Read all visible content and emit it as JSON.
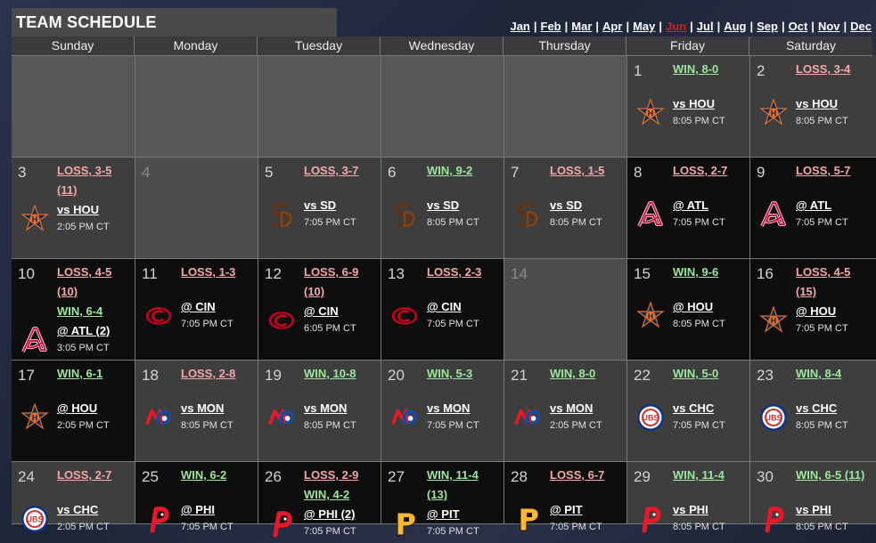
{
  "header": {
    "title": "TEAM SCHEDULE"
  },
  "months": [
    {
      "label": "Jan",
      "active": false
    },
    {
      "label": "Feb",
      "active": false
    },
    {
      "label": "Mar",
      "active": false
    },
    {
      "label": "Apr",
      "active": false
    },
    {
      "label": "May",
      "active": false
    },
    {
      "label": "Jun",
      "active": true
    },
    {
      "label": "Jul",
      "active": false
    },
    {
      "label": "Aug",
      "active": false
    },
    {
      "label": "Sep",
      "active": false
    },
    {
      "label": "Oct",
      "active": false
    },
    {
      "label": "Nov",
      "active": false
    },
    {
      "label": "Dec",
      "active": false
    }
  ],
  "month_separator": "|",
  "weekdays": [
    "Sunday",
    "Monday",
    "Tuesday",
    "Wednesday",
    "Thursday",
    "Friday",
    "Saturday"
  ],
  "colors": {
    "win": "#9ee59e",
    "loss": "#f2a8a8",
    "active_month": "#cc1f1f",
    "home_cell": "#3e3e3e",
    "away_cell": "#0e0e0e",
    "off_cell": "#4d4d4d",
    "empty_cell": "#575756"
  },
  "weeks": [
    [
      {
        "type": "empty"
      },
      {
        "type": "empty"
      },
      {
        "type": "empty"
      },
      {
        "type": "empty"
      },
      {
        "type": "empty"
      },
      {
        "type": "game",
        "day": "1",
        "home": true,
        "results": [
          {
            "text": "WIN, 8-0",
            "outcome": "win"
          }
        ],
        "opponent": "vs HOU",
        "time": "8:05 PM CT",
        "logo": "astros-logo"
      },
      {
        "type": "game",
        "day": "2",
        "home": true,
        "results": [
          {
            "text": "LOSS, 3-4",
            "outcome": "loss"
          }
        ],
        "opponent": "vs HOU",
        "time": "8:05 PM CT",
        "logo": "astros-logo"
      }
    ],
    [
      {
        "type": "game",
        "day": "3",
        "home": true,
        "results": [
          {
            "text": "LOSS, 3-5",
            "outcome": "loss"
          },
          {
            "text": "(11)",
            "outcome": "loss"
          }
        ],
        "opponent": "vs HOU",
        "time": "2:05 PM CT",
        "logo": "astros-logo"
      },
      {
        "type": "off",
        "day": "4"
      },
      {
        "type": "game",
        "day": "5",
        "home": true,
        "results": [
          {
            "text": "LOSS, 3-7",
            "outcome": "loss"
          }
        ],
        "opponent": "vs SD",
        "time": "7:05 PM CT",
        "logo": "padres-logo"
      },
      {
        "type": "game",
        "day": "6",
        "home": true,
        "results": [
          {
            "text": "WIN, 9-2",
            "outcome": "win"
          }
        ],
        "opponent": "vs SD",
        "time": "8:05 PM CT",
        "logo": "padres-logo"
      },
      {
        "type": "game",
        "day": "7",
        "home": true,
        "results": [
          {
            "text": "LOSS, 1-5",
            "outcome": "loss"
          }
        ],
        "opponent": "vs SD",
        "time": "8:05 PM CT",
        "logo": "padres-logo"
      },
      {
        "type": "game",
        "day": "8",
        "home": false,
        "results": [
          {
            "text": "LOSS, 2-7",
            "outcome": "loss"
          }
        ],
        "opponent": "@ ATL",
        "time": "7:05 PM CT",
        "logo": "braves-logo"
      },
      {
        "type": "game",
        "day": "9",
        "home": false,
        "results": [
          {
            "text": "LOSS, 5-7",
            "outcome": "loss"
          }
        ],
        "opponent": "@ ATL",
        "time": "7:05 PM CT",
        "logo": "braves-logo"
      }
    ],
    [
      {
        "type": "game",
        "day": "10",
        "home": false,
        "results": [
          {
            "text": "LOSS, 4-5",
            "outcome": "loss"
          },
          {
            "text": "(10)",
            "outcome": "loss"
          },
          {
            "text": "WIN, 6-4",
            "outcome": "win"
          }
        ],
        "opponent": "@ ATL (2)",
        "time": "3:05 PM CT",
        "logo": "braves-logo"
      },
      {
        "type": "game",
        "day": "11",
        "home": false,
        "results": [
          {
            "text": "LOSS, 1-3",
            "outcome": "loss"
          }
        ],
        "opponent": "@ CIN",
        "time": "7:05 PM CT",
        "logo": "reds-logo"
      },
      {
        "type": "game",
        "day": "12",
        "home": false,
        "results": [
          {
            "text": "LOSS, 6-9",
            "outcome": "loss"
          },
          {
            "text": "(10)",
            "outcome": "loss"
          }
        ],
        "opponent": "@ CIN",
        "time": "6:05 PM CT",
        "logo": "reds-logo"
      },
      {
        "type": "game",
        "day": "13",
        "home": false,
        "results": [
          {
            "text": "LOSS, 2-3",
            "outcome": "loss"
          }
        ],
        "opponent": "@ CIN",
        "time": "7:05 PM CT",
        "logo": "reds-logo"
      },
      {
        "type": "off",
        "day": "14"
      },
      {
        "type": "game",
        "day": "15",
        "home": false,
        "results": [
          {
            "text": "WIN, 9-6",
            "outcome": "win"
          }
        ],
        "opponent": "@ HOU",
        "time": "8:05 PM CT",
        "logo": "astros-logo"
      },
      {
        "type": "game",
        "day": "16",
        "home": false,
        "results": [
          {
            "text": "LOSS, 4-5",
            "outcome": "loss"
          },
          {
            "text": "(15)",
            "outcome": "loss"
          }
        ],
        "opponent": "@ HOU",
        "time": "7:05 PM CT",
        "logo": "astros-logo"
      }
    ],
    [
      {
        "type": "game",
        "day": "17",
        "home": false,
        "results": [
          {
            "text": "WIN, 6-1",
            "outcome": "win"
          }
        ],
        "opponent": "@ HOU",
        "time": "2:05 PM CT",
        "logo": "astros-logo"
      },
      {
        "type": "game",
        "day": "18",
        "home": true,
        "results": [
          {
            "text": "LOSS, 2-8",
            "outcome": "loss"
          }
        ],
        "opponent": "vs MON",
        "time": "8:05 PM CT",
        "logo": "expos-logo"
      },
      {
        "type": "game",
        "day": "19",
        "home": true,
        "results": [
          {
            "text": "WIN, 10-8",
            "outcome": "win"
          }
        ],
        "opponent": "vs MON",
        "time": "8:05 PM CT",
        "logo": "expos-logo"
      },
      {
        "type": "game",
        "day": "20",
        "home": true,
        "results": [
          {
            "text": "WIN, 5-3",
            "outcome": "win"
          }
        ],
        "opponent": "vs MON",
        "time": "7:05 PM CT",
        "logo": "expos-logo"
      },
      {
        "type": "game",
        "day": "21",
        "home": true,
        "results": [
          {
            "text": "WIN, 8-0",
            "outcome": "win"
          }
        ],
        "opponent": "vs MON",
        "time": "2:05 PM CT",
        "logo": "expos-logo"
      },
      {
        "type": "game",
        "day": "22",
        "home": true,
        "results": [
          {
            "text": "WIN, 5-0",
            "outcome": "win"
          }
        ],
        "opponent": "vs CHC",
        "time": "7:05 PM CT",
        "logo": "cubs-logo"
      },
      {
        "type": "game",
        "day": "23",
        "home": true,
        "results": [
          {
            "text": "WIN, 8-4",
            "outcome": "win"
          }
        ],
        "opponent": "vs CHC",
        "time": "8:05 PM CT",
        "logo": "cubs-logo"
      }
    ],
    [
      {
        "type": "game",
        "day": "24",
        "home": true,
        "results": [
          {
            "text": "LOSS, 2-7",
            "outcome": "loss"
          }
        ],
        "opponent": "vs CHC",
        "time": "2:05 PM CT",
        "logo": "cubs-logo"
      },
      {
        "type": "game",
        "day": "25",
        "home": false,
        "results": [
          {
            "text": "WIN, 6-2",
            "outcome": "win"
          }
        ],
        "opponent": "@ PHI",
        "time": "7:05 PM CT",
        "logo": "phillies-logo"
      },
      {
        "type": "game",
        "day": "26",
        "home": false,
        "results": [
          {
            "text": "LOSS, 2-9",
            "outcome": "loss"
          },
          {
            "text": "WIN, 4-2",
            "outcome": "win"
          }
        ],
        "opponent": "@ PHI (2)",
        "time": "7:05 PM CT",
        "logo": "phillies-logo"
      },
      {
        "type": "game",
        "day": "27",
        "home": false,
        "results": [
          {
            "text": "WIN, 11-4",
            "outcome": "win"
          },
          {
            "text": "(13)",
            "outcome": "win"
          }
        ],
        "opponent": "@ PIT",
        "time": "7:05 PM CT",
        "logo": "pirates-logo"
      },
      {
        "type": "game",
        "day": "28",
        "home": false,
        "results": [
          {
            "text": "LOSS, 6-7",
            "outcome": "loss"
          }
        ],
        "opponent": "@ PIT",
        "time": "7:05 PM CT",
        "logo": "pirates-logo"
      },
      {
        "type": "game",
        "day": "29",
        "home": true,
        "results": [
          {
            "text": "WIN, 11-4",
            "outcome": "win"
          }
        ],
        "opponent": "vs PHI",
        "time": "8:05 PM CT",
        "logo": "phillies-logo"
      },
      {
        "type": "game",
        "day": "30",
        "home": true,
        "results": [
          {
            "text": "WIN, 6-5 (11)",
            "outcome": "win"
          }
        ],
        "opponent": "vs PHI",
        "time": "8:05 PM CT",
        "logo": "phillies-logo"
      }
    ]
  ]
}
